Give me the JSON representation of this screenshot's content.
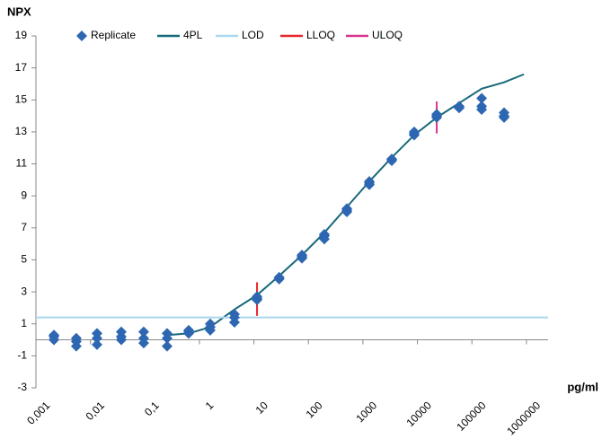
{
  "chart_data": {
    "type": "scatter",
    "xlabel": "pg/ml",
    "ylabel": "NPX",
    "log_x": true,
    "grid": false,
    "legend": "top",
    "xlim": [
      0.001,
      2500000
    ],
    "ylim": [
      -3,
      19
    ],
    "xticks": [
      {
        "value": 0.001,
        "label": "0,001"
      },
      {
        "value": 0.01,
        "label": "0,01"
      },
      {
        "value": 0.1,
        "label": "0,1"
      },
      1,
      10,
      100,
      1000,
      10000,
      100000,
      1000000
    ],
    "yticks": [
      -3,
      -1,
      1,
      3,
      5,
      7,
      9,
      11,
      13,
      15,
      17,
      19
    ],
    "series": [
      {
        "name": "Replicate",
        "color": "#2e67b1",
        "mode": "markers",
        "x": [
          0.00214,
          0.00214,
          0.00214,
          0.0055,
          0.0055,
          0.0055,
          0.0132,
          0.0132,
          0.0132,
          0.0368,
          0.0368,
          0.0368,
          0.095,
          0.095,
          0.095,
          0.255,
          0.255,
          0.255,
          0.635,
          0.635,
          0.635,
          1.58,
          1.58,
          1.58,
          4.4,
          4.4,
          4.4,
          11.4,
          11.4,
          11.4,
          29,
          29,
          29,
          76,
          76,
          76,
          196,
          196,
          196,
          507,
          507,
          507,
          1310,
          1310,
          1310,
          3380,
          3380,
          3380,
          8730,
          8730,
          8730,
          22600,
          22600,
          22600,
          58300,
          58300,
          58300,
          151000,
          151000,
          151000,
          389000,
          389000,
          389000
        ],
        "values": [
          0.0,
          0.2,
          0.3,
          -0.4,
          -0.1,
          0.1,
          -0.3,
          0.1,
          0.4,
          0.0,
          0.2,
          0.5,
          -0.2,
          0.1,
          0.5,
          -0.4,
          0.1,
          0.4,
          0.4,
          0.5,
          0.6,
          0.6,
          0.8,
          1.0,
          1.1,
          1.4,
          1.6,
          2.5,
          2.6,
          2.7,
          3.8,
          3.9,
          3.9,
          5.1,
          5.2,
          5.3,
          6.3,
          6.5,
          6.6,
          8.0,
          8.1,
          8.2,
          9.7,
          9.8,
          9.9,
          11.2,
          11.3,
          11.3,
          12.8,
          12.9,
          13.0,
          13.9,
          14.0,
          14.1,
          14.5,
          14.5,
          14.6,
          14.4,
          14.6,
          15.1,
          13.9,
          14.0,
          14.2
        ]
      },
      {
        "name": "4PL",
        "color": "#17697a",
        "mode": "line",
        "x": [
          0.255,
          0.635,
          1.58,
          4.4,
          11.4,
          29,
          76,
          196,
          507,
          1310,
          3380,
          8730,
          22600,
          58300,
          151000,
          389000,
          898000
        ],
        "values": [
          0.3,
          0.4,
          0.8,
          1.9,
          2.8,
          4.0,
          5.3,
          6.7,
          8.3,
          9.9,
          11.4,
          12.8,
          13.9,
          14.8,
          15.7,
          16.1,
          16.6
        ]
      },
      {
        "name": "LOD",
        "color": "#a9d8ee",
        "mode": "line",
        "x": [
          0.001,
          2500000
        ],
        "values": [
          1.4,
          1.4
        ]
      },
      {
        "name": "LLOQ",
        "color": "#e8262a",
        "mode": "line",
        "x": [
          11.4,
          11.4
        ],
        "values": [
          1.5,
          3.6
        ]
      },
      {
        "name": "ULOQ",
        "color": "#d8338c",
        "mode": "line",
        "x": [
          22600,
          22600
        ],
        "values": [
          12.9,
          14.9
        ]
      }
    ]
  }
}
